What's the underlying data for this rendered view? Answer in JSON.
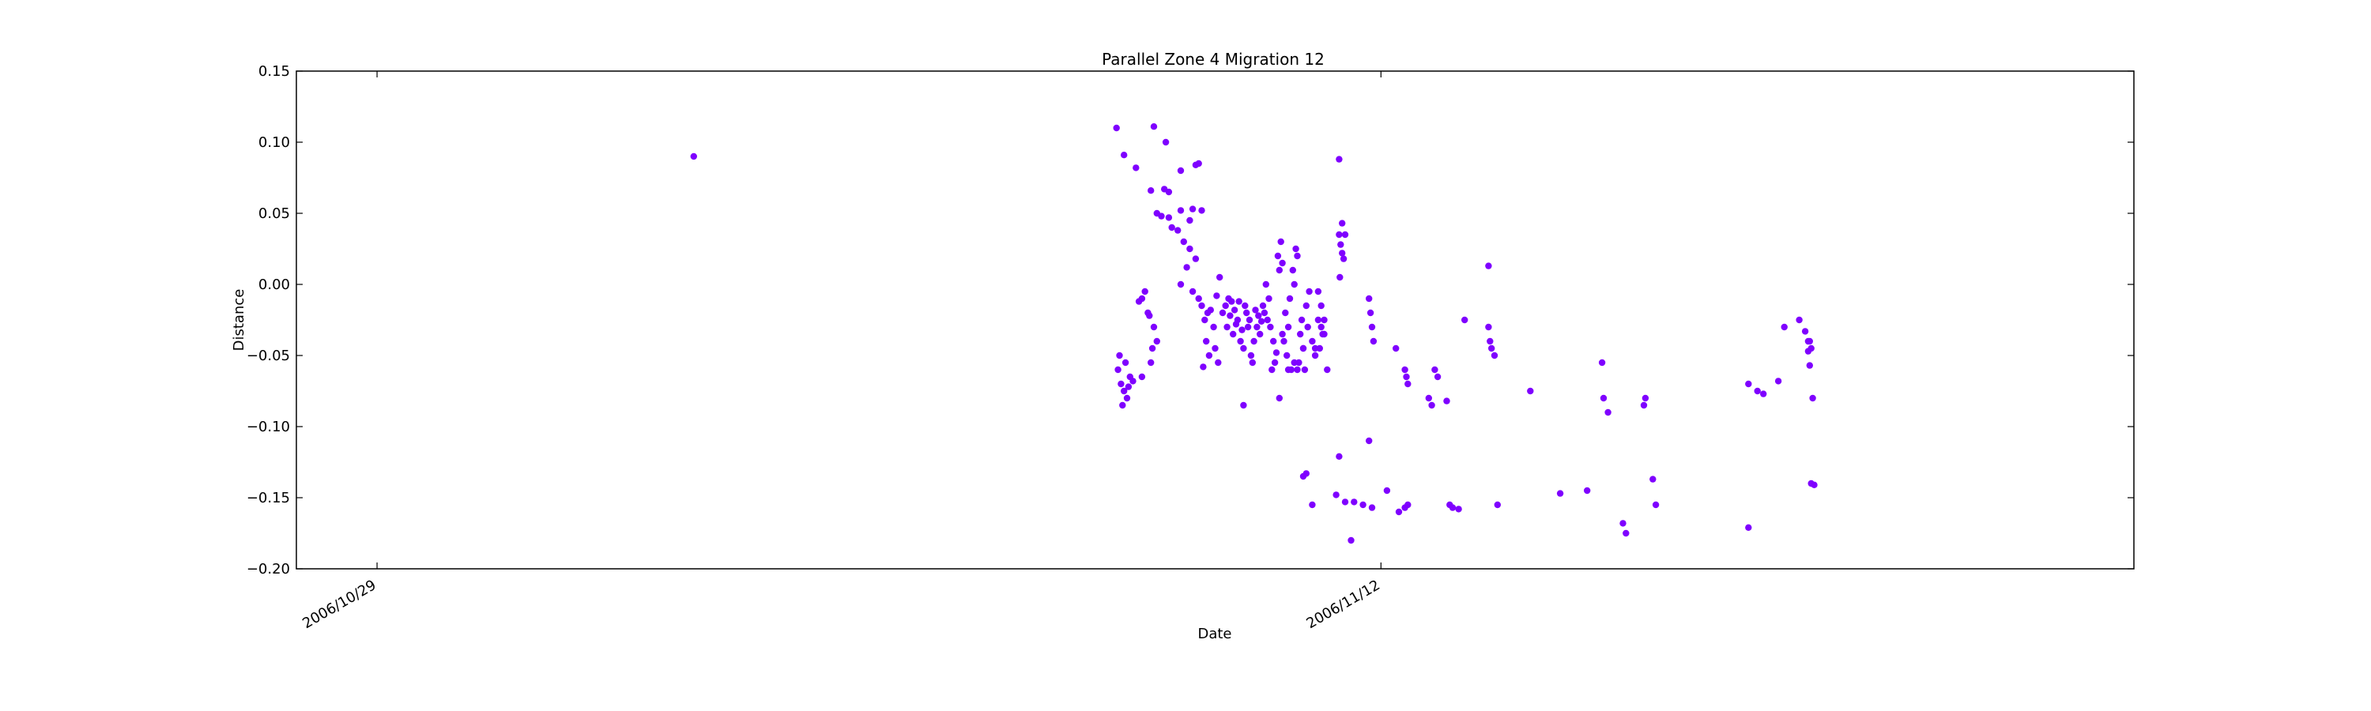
{
  "chart_data": {
    "type": "scatter",
    "title": "Parallel Zone 4 Migration 12",
    "xlabel": "Date",
    "ylabel": "Distance",
    "x_axis": "date",
    "xlim": [
      "2006-10-27T21:00",
      "2006-11-22T12:00"
    ],
    "ylim": [
      -0.2,
      0.15
    ],
    "yticks": [
      -0.2,
      -0.15,
      -0.1,
      -0.05,
      0.0,
      0.05,
      0.1,
      0.15
    ],
    "ytick_labels": [
      "−0.20",
      "−0.15",
      "−0.10",
      "−0.05",
      "0.00",
      "0.05",
      "0.10",
      "0.15"
    ],
    "xticks": [
      "2006-10-29T00:00",
      "2006-11-12T00:00"
    ],
    "xtick_labels": [
      "2006/10/29",
      "2006/11/12"
    ],
    "grid": false,
    "legend": "none",
    "marker_color": "#7f00ff",
    "series": [
      {
        "x": [
          "2006-11-02T10:00",
          "2006-11-08T07:30",
          "2006-11-08T10:00",
          "2006-11-08T14:00",
          "2006-11-08T20:00",
          "2006-11-09T10:00",
          "2006-11-08T19:00",
          "2006-11-09T01:00",
          "2006-11-08T23:30",
          "2006-11-09T05:00",
          "2006-11-09T00:00",
          "2006-11-09T11:00",
          "2006-11-09T01:00",
          "2006-11-08T21:00",
          "2006-11-08T22:30",
          "2006-11-09T08:00",
          "2006-11-09T02:00",
          "2006-11-09T05:00",
          "2006-11-09T09:00",
          "2006-11-09T12:00",
          "2006-11-08T08:00",
          "2006-11-08T09:00",
          "2006-11-08T10:00",
          "2006-11-08T11:00",
          "2006-11-08T09:30",
          "2006-11-08T11:30",
          "2006-11-08T12:00",
          "2006-11-08T13:00",
          "2006-11-08T08:30",
          "2006-11-08T10:30",
          "2006-11-08T16:00",
          "2006-11-08T19:00",
          "2006-11-08T18:00",
          "2006-11-08T16:00",
          "2006-11-08T17:00",
          "2006-11-08T20:00",
          "2006-11-08T15:00",
          "2006-11-08T18:30",
          "2006-11-08T21:00",
          "2006-11-08T19:30",
          "2006-11-09T04:00",
          "2006-11-09T06:00",
          "2006-11-09T08:00",
          "2006-11-09T10:00",
          "2006-11-09T07:00",
          "2006-11-09T05:00",
          "2006-11-09T09:00",
          "2006-11-09T11:00",
          "2006-11-09T12:00",
          "2006-11-09T14:00",
          "2006-11-09T16:00",
          "2006-11-09T13:00",
          "2006-11-09T15:00",
          "2006-11-09T17:00",
          "2006-11-09T18:00",
          "2006-11-09T13:30",
          "2006-11-09T16:30",
          "2006-11-09T14:30",
          "2006-11-09T17:30",
          "2006-11-09T12:30",
          "2006-11-09T19:00",
          "2006-11-09T20:00",
          "2006-11-09T21:00",
          "2006-11-09T22:00",
          "2006-11-09T23:00",
          "2006-11-10T00:00",
          "2006-11-09T20:30",
          "2006-11-09T22:30",
          "2006-11-10T01:00",
          "2006-11-10T02:00",
          "2006-11-10T03:00",
          "2006-11-10T04:00",
          "2006-11-10T03:30",
          "2006-11-10T02:30",
          "2006-11-10T00:30",
          "2006-11-09T21:30",
          "2006-11-09T23:30",
          "2006-11-10T01:30",
          "2006-11-10T04:30",
          "2006-11-10T05:00",
          "2006-11-10T06:00",
          "2006-11-10T07:00",
          "2006-11-10T08:00",
          "2006-11-10T06:30",
          "2006-11-10T07:30",
          "2006-11-10T05:30",
          "2006-11-10T08:30",
          "2006-11-10T09:00",
          "2006-11-10T10:00",
          "2006-11-10T11:00",
          "2006-11-10T12:00",
          "2006-11-10T13:00",
          "2006-11-10T12:30",
          "2006-11-10T11:30",
          "2006-11-10T10:30",
          "2006-11-10T09:30",
          "2006-11-10T14:00",
          "2006-11-10T15:00",
          "2006-11-10T13:30",
          "2006-11-10T14:30",
          "2006-11-10T16:00",
          "2006-11-10T17:00",
          "2006-11-10T15:30",
          "2006-11-10T16:30",
          "2006-11-10T18:00",
          "2006-11-10T17:30",
          "2006-11-10T19:00",
          "2006-11-10T18:30",
          "2006-11-10T20:00",
          "2006-11-10T19:30",
          "2006-11-10T21:00",
          "2006-11-10T22:00",
          "2006-11-10T20:30",
          "2006-11-10T21:30",
          "2006-11-10T23:00",
          "2006-11-11T00:00",
          "2006-11-10T22:30",
          "2006-11-10T23:30",
          "2006-11-11T01:00",
          "2006-11-11T02:00",
          "2006-11-11T03:00",
          "2006-11-11T04:00",
          "2006-11-11T05:00",
          "2006-11-11T04:30",
          "2006-11-11T03:30",
          "2006-11-11T10:00",
          "2006-11-11T10:30",
          "2006-11-11T11:00",
          "2006-11-11T11:30",
          "2006-11-11T10:15",
          "2006-11-11T20:00",
          "2006-11-11T20:30",
          "2006-11-11T21:00",
          "2006-11-11T21:30",
          "2006-11-12T08:00",
          "2006-11-12T08:30",
          "2006-11-12T09:00",
          "2006-11-12T16:00",
          "2006-11-12T17:00",
          "2006-11-13T12:00",
          "2006-11-13T12:30",
          "2006-11-13T13:00",
          "2006-11-13T14:00",
          "2006-11-10T02:00",
          "2006-11-10T14:00",
          "2006-11-10T17:00",
          "2006-11-10T20:00",
          "2006-11-10T19:00",
          "2006-11-10T15:00",
          "2006-11-10T22:00",
          "2006-11-11T03:00",
          "2006-11-11T04:00",
          "2006-11-11T05:00",
          "2006-11-11T02:00",
          "2006-11-11T06:00",
          "2006-11-11T10:00",
          "2006-11-11T11:00",
          "2006-11-11T12:00",
          "2006-11-12T05:00",
          "2006-11-12T18:00",
          "2006-11-12T19:00",
          "2006-11-12T22:00",
          "2006-11-13T04:00",
          "2006-11-13T12:00",
          "2006-11-14T02:00",
          "2006-11-15T02:00",
          "2006-11-15T02:30",
          "2006-11-15T04:00",
          "2006-11-15T16:00",
          "2006-11-15T16:30",
          "2006-11-17T08:00",
          "2006-11-17T23:00",
          "2006-11-17T23:30",
          "2006-11-17T03:00",
          "2006-11-17T06:00",
          "2006-11-17T13:00",
          "2006-11-17T15:00",
          "2006-11-17T20:00",
          "2006-11-17T22:00",
          "2006-11-17T23:00",
          "2006-11-17T23:30",
          "2006-11-18T00:00",
          "2006-11-18T00:30"
        ],
        "y": [
          0.09,
          0.11,
          0.091,
          0.082,
          0.111,
          0.084,
          0.066,
          0.065,
          0.067,
          0.08,
          0.1,
          0.085,
          0.047,
          0.05,
          0.048,
          0.045,
          0.04,
          0.052,
          0.053,
          0.052,
          -0.06,
          -0.07,
          -0.075,
          -0.08,
          -0.085,
          -0.072,
          -0.065,
          -0.068,
          -0.05,
          -0.055,
          -0.065,
          -0.055,
          -0.02,
          -0.01,
          -0.005,
          -0.03,
          -0.012,
          -0.022,
          -0.04,
          -0.045,
          0.038,
          0.03,
          0.025,
          0.018,
          0.012,
          0.0,
          -0.005,
          -0.01,
          -0.015,
          -0.02,
          -0.03,
          -0.025,
          -0.018,
          -0.008,
          0.005,
          -0.04,
          -0.045,
          -0.05,
          -0.055,
          -0.058,
          -0.02,
          -0.015,
          -0.01,
          -0.012,
          -0.018,
          -0.025,
          -0.03,
          -0.035,
          -0.04,
          -0.045,
          -0.02,
          -0.025,
          -0.03,
          -0.015,
          -0.012,
          -0.022,
          -0.028,
          -0.032,
          -0.05,
          -0.055,
          -0.018,
          -0.022,
          -0.026,
          -0.03,
          -0.035,
          -0.04,
          -0.015,
          -0.02,
          -0.025,
          -0.03,
          -0.04,
          -0.048,
          -0.055,
          -0.06,
          -0.01,
          0.0,
          0.01,
          0.015,
          0.02,
          0.03,
          -0.02,
          -0.03,
          -0.04,
          -0.05,
          -0.06,
          -0.01,
          0.0,
          0.01,
          0.02,
          0.025,
          -0.035,
          -0.045,
          -0.055,
          -0.025,
          -0.015,
          -0.005,
          -0.06,
          -0.03,
          -0.04,
          -0.05,
          -0.005,
          -0.015,
          -0.025,
          -0.035,
          -0.045,
          0.035,
          0.028,
          0.022,
          0.018,
          0.005,
          -0.01,
          -0.02,
          -0.03,
          -0.04,
          -0.06,
          -0.065,
          -0.07,
          -0.08,
          -0.085,
          -0.03,
          -0.04,
          -0.045,
          -0.05,
          -0.085,
          -0.08,
          -0.06,
          -0.06,
          -0.055,
          -0.035,
          -0.045,
          -0.025,
          -0.03,
          -0.035,
          -0.045,
          -0.06,
          0.088,
          0.043,
          0.035,
          -0.045,
          -0.06,
          -0.065,
          -0.082,
          -0.025,
          0.013,
          -0.075,
          -0.055,
          -0.08,
          -0.09,
          -0.085,
          -0.08,
          -0.077,
          -0.047,
          -0.057,
          -0.07,
          -0.075,
          -0.068,
          -0.03,
          -0.025,
          -0.033,
          -0.04,
          -0.04,
          -0.045,
          -0.08
        ]
      },
      {
        "x": [
          "2006-11-10T22:00",
          "2006-11-10T23:00",
          "2006-11-11T01:00",
          "2006-11-11T09:00",
          "2006-11-11T12:00",
          "2006-11-11T15:00",
          "2006-11-11T18:00",
          "2006-11-11T21:00",
          "2006-11-12T02:00",
          "2006-11-12T06:00",
          "2006-11-12T08:00",
          "2006-11-12T09:00",
          "2006-11-12T23:00",
          "2006-11-13T00:00",
          "2006-11-13T02:00",
          "2006-11-13T15:00",
          "2006-11-14T12:00",
          "2006-11-14T21:00",
          "2006-11-15T09:00",
          "2006-11-15T10:00",
          "2006-11-15T19:00",
          "2006-11-15T20:00",
          "2006-11-17T03:00",
          "2006-11-18T00:00",
          "2006-11-18T01:00",
          "2006-11-11T14:00",
          "2006-11-11T20:00",
          "2006-11-11T10:00"
        ],
        "y": [
          -0.135,
          -0.133,
          -0.155,
          -0.148,
          -0.153,
          -0.153,
          -0.155,
          -0.157,
          -0.145,
          -0.16,
          -0.157,
          -0.155,
          -0.155,
          -0.157,
          -0.158,
          -0.155,
          -0.147,
          -0.145,
          -0.168,
          -0.175,
          -0.137,
          -0.155,
          -0.171,
          -0.14,
          -0.141,
          -0.18,
          -0.11,
          -0.121
        ]
      }
    ]
  }
}
